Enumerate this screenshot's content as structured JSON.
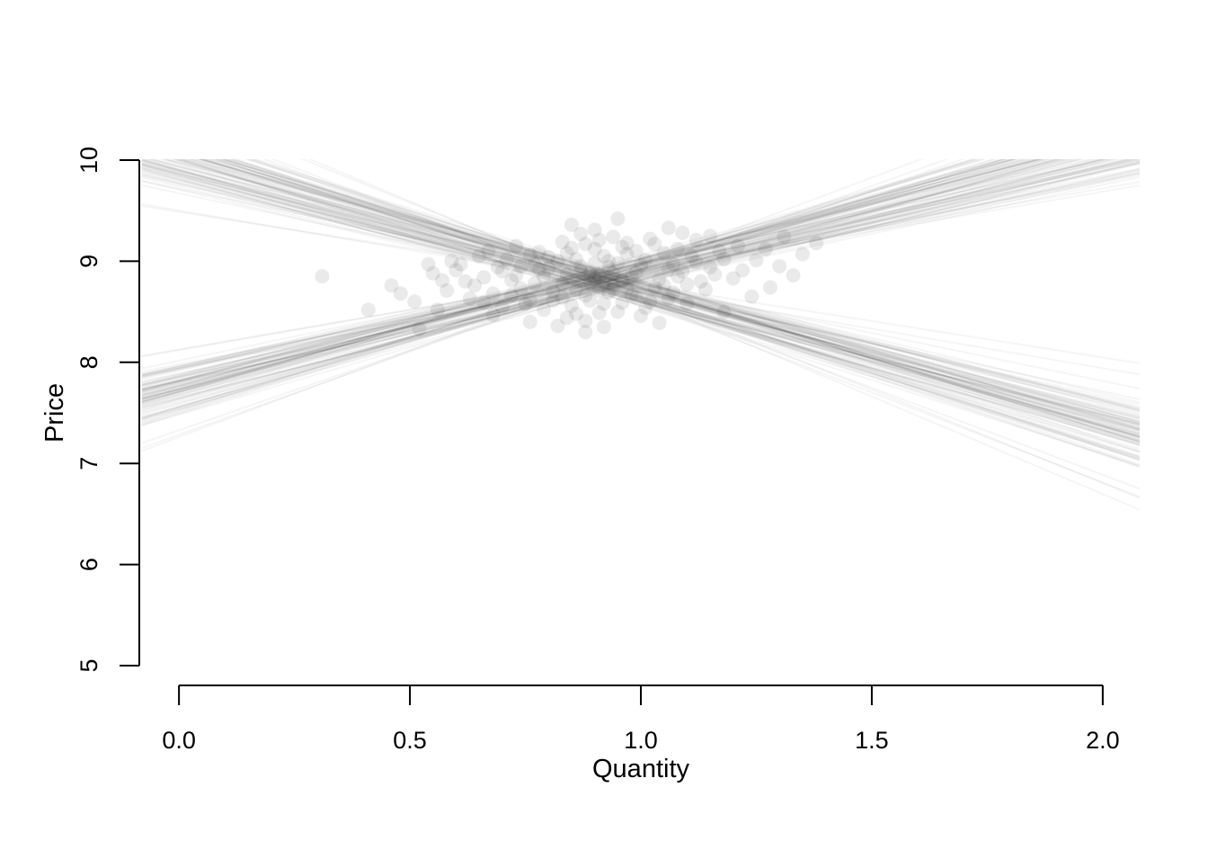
{
  "window": {
    "background": "#ffffff"
  },
  "chart_data": {
    "type": "scatter",
    "title": "",
    "xlabel": "Quantity",
    "ylabel": "Price",
    "xlim": [
      -0.08,
      2.08
    ],
    "ylim": [
      5,
      10
    ],
    "grid": false,
    "legend": "none",
    "x_ticks": [
      {
        "value": 0,
        "label": "0.0"
      },
      {
        "value": 0.5,
        "label": "0.5"
      },
      {
        "value": 1,
        "label": "1.0"
      },
      {
        "value": 1.5,
        "label": "1.5"
      },
      {
        "value": 2,
        "label": "2.0"
      }
    ],
    "y_ticks": [
      {
        "value": 5,
        "label": "5"
      },
      {
        "value": 6,
        "label": "6"
      },
      {
        "value": 7,
        "label": "7"
      },
      {
        "value": 8,
        "label": "8"
      },
      {
        "value": 9,
        "label": "9"
      },
      {
        "value": 10,
        "label": "10"
      }
    ],
    "pivot_x": 0.9,
    "supply_lines": [
      [
        8.8,
        1.12
      ],
      [
        8.76,
        1.28
      ],
      [
        8.84,
        0.98
      ],
      [
        8.71,
        1.19
      ],
      [
        8.88,
        1.05
      ],
      [
        8.79,
        1.37
      ],
      [
        8.83,
        0.78
      ],
      [
        8.74,
        1.15
      ],
      [
        8.9,
        1.22
      ],
      [
        8.77,
        1.02
      ],
      [
        8.85,
        1.31
      ],
      [
        8.69,
        1.09
      ],
      [
        8.81,
        0.94
      ],
      [
        8.87,
        1.18
      ],
      [
        8.73,
        1.26
      ],
      [
        8.92,
        1.07
      ],
      [
        8.78,
        1.42
      ],
      [
        8.84,
        1.13
      ],
      [
        8.7,
        0.99
      ],
      [
        8.86,
        1.24
      ],
      [
        8.75,
        1.35
      ],
      [
        8.82,
        1.04
      ],
      [
        8.89,
        1.16
      ],
      [
        8.72,
        1.29
      ],
      [
        8.8,
        0.91
      ],
      [
        8.77,
        1.21
      ],
      [
        8.91,
        1.1
      ],
      [
        8.68,
        1.33
      ],
      [
        8.83,
        1.17
      ],
      [
        8.79,
        1.0
      ],
      [
        8.86,
        1.27
      ],
      [
        8.74,
        1.08
      ],
      [
        8.81,
        1.39
      ],
      [
        8.88,
        0.96
      ],
      [
        8.76,
        1.14
      ],
      [
        8.84,
        1.23
      ],
      [
        8.71,
        1.06
      ],
      [
        8.9,
        1.32
      ],
      [
        8.78,
        0.93
      ],
      [
        8.85,
        1.2
      ],
      [
        8.73,
        1.11
      ],
      [
        8.82,
        1.45
      ],
      [
        8.87,
        1.03
      ],
      [
        8.75,
        1.25
      ],
      [
        8.8,
        1.17
      ],
      [
        8.93,
        1.3
      ],
      [
        8.69,
        0.97
      ],
      [
        8.86,
        1.09
      ],
      [
        8.77,
        1.36
      ],
      [
        8.83,
        1.22
      ],
      [
        8.72,
        1.01
      ],
      [
        8.89,
        1.19
      ],
      [
        8.76,
        1.64
      ],
      [
        8.81,
        1.07
      ],
      [
        8.87,
        1.26
      ],
      [
        8.7,
        1.13
      ],
      [
        8.84,
        0.8
      ],
      [
        8.79,
        1.34
      ],
      [
        8.91,
        1.16
      ],
      [
        8.74,
        1.05
      ],
      [
        8.82,
        1.24
      ],
      [
        8.78,
        0.95
      ],
      [
        8.88,
        1.38
      ],
      [
        8.67,
        1.12
      ],
      [
        8.85,
        1.21
      ],
      [
        8.73,
        1.3
      ],
      [
        8.8,
        1.04
      ],
      [
        8.9,
        1.15
      ],
      [
        8.76,
        1.41
      ],
      [
        8.83,
        0.99
      ],
      [
        8.71,
        1.18
      ],
      [
        8.86,
        1.28
      ],
      [
        8.79,
        1.08
      ],
      [
        8.92,
        1.23
      ],
      [
        8.75,
        1.58
      ],
      [
        8.81,
        1.14
      ],
      [
        8.88,
        1.02
      ],
      [
        8.68,
        1.27
      ],
      [
        8.84,
        1.19
      ],
      [
        8.77,
        0.92
      ],
      [
        8.89,
        1.33
      ],
      [
        8.72,
        1.1
      ],
      [
        8.85,
        1.25
      ],
      [
        8.78,
        1.06
      ],
      [
        8.82,
        1.44
      ],
      [
        8.7,
        1.17
      ],
      [
        8.87,
        1.29
      ],
      [
        8.74,
        0.98
      ],
      [
        8.91,
        1.21
      ],
      [
        8.8,
        1.71
      ]
    ],
    "demand_lines": [
      [
        8.82,
        -1.25
      ],
      [
        8.78,
        -1.41
      ],
      [
        8.86,
        -1.12
      ],
      [
        8.73,
        -1.3
      ],
      [
        8.9,
        -1.19
      ],
      [
        8.8,
        -1.48
      ],
      [
        8.84,
        -0.72
      ],
      [
        8.76,
        -1.27
      ],
      [
        8.92,
        -1.35
      ],
      [
        8.79,
        -1.16
      ],
      [
        8.87,
        -1.44
      ],
      [
        8.71,
        -1.22
      ],
      [
        8.83,
        -1.08
      ],
      [
        8.89,
        -1.31
      ],
      [
        8.75,
        -1.39
      ],
      [
        8.94,
        -1.2
      ],
      [
        8.8,
        -1.55
      ],
      [
        8.86,
        -1.26
      ],
      [
        8.72,
        -1.13
      ],
      [
        8.88,
        -1.37
      ],
      [
        8.77,
        -1.47
      ],
      [
        8.84,
        -1.17
      ],
      [
        8.91,
        -1.29
      ],
      [
        8.74,
        -1.42
      ],
      [
        8.82,
        -1.05
      ],
      [
        8.79,
        -1.34
      ],
      [
        8.93,
        -1.23
      ],
      [
        8.7,
        -1.46
      ],
      [
        8.85,
        -1.3
      ],
      [
        8.81,
        -1.14
      ],
      [
        8.88,
        -1.4
      ],
      [
        8.76,
        -1.21
      ],
      [
        8.83,
        -1.52
      ],
      [
        8.9,
        -1.1
      ],
      [
        8.78,
        -1.28
      ],
      [
        8.86,
        -1.36
      ],
      [
        8.73,
        -1.19
      ],
      [
        8.92,
        -1.45
      ],
      [
        8.8,
        -0.78
      ],
      [
        8.87,
        -1.33
      ],
      [
        8.75,
        -1.24
      ],
      [
        8.84,
        -1.85
      ],
      [
        8.89,
        -1.16
      ],
      [
        8.77,
        -1.38
      ],
      [
        8.82,
        -1.31
      ],
      [
        8.95,
        -1.43
      ],
      [
        8.71,
        -1.11
      ],
      [
        8.88,
        -1.22
      ],
      [
        8.79,
        -1.49
      ],
      [
        8.85,
        -1.35
      ],
      [
        8.74,
        -1.15
      ],
      [
        8.91,
        -1.32
      ],
      [
        8.78,
        -1.72
      ],
      [
        8.83,
        -1.2
      ],
      [
        8.89,
        -1.39
      ],
      [
        8.72,
        -1.26
      ],
      [
        8.86,
        -0.95
      ],
      [
        8.81,
        -1.47
      ],
      [
        8.93,
        -1.29
      ],
      [
        8.76,
        -1.18
      ],
      [
        8.84,
        -1.37
      ],
      [
        8.8,
        -1.09
      ],
      [
        8.9,
        -1.51
      ],
      [
        8.69,
        -1.25
      ],
      [
        8.87,
        -1.34
      ],
      [
        8.75,
        -1.43
      ],
      [
        8.82,
        -1.17
      ],
      [
        8.92,
        -1.28
      ],
      [
        8.78,
        -1.54
      ],
      [
        8.85,
        -1.12
      ],
      [
        8.73,
        -1.31
      ],
      [
        8.88,
        -1.41
      ],
      [
        8.81,
        -1.21
      ],
      [
        8.94,
        -1.36
      ],
      [
        8.77,
        -1.78
      ],
      [
        8.83,
        -1.27
      ],
      [
        8.9,
        -1.15
      ],
      [
        8.7,
        -1.4
      ],
      [
        8.86,
        -1.32
      ],
      [
        8.79,
        -0.98
      ],
      [
        8.91,
        -1.46
      ],
      [
        8.74,
        -1.23
      ],
      [
        8.87,
        -1.38
      ],
      [
        8.8,
        -1.19
      ],
      [
        8.84,
        -1.57
      ],
      [
        8.72,
        -1.3
      ],
      [
        8.89,
        -1.42
      ],
      [
        8.76,
        -1.11
      ],
      [
        8.93,
        -1.34
      ],
      [
        8.82,
        -1.93
      ]
    ],
    "points": [
      [
        0.78,
        8.92
      ],
      [
        0.83,
        8.77
      ],
      [
        0.91,
        8.85
      ],
      [
        0.95,
        8.98
      ],
      [
        0.88,
        8.66
      ],
      [
        0.72,
        8.81
      ],
      [
        0.99,
        8.89
      ],
      [
        1.03,
        8.74
      ],
      [
        0.86,
        9.02
      ],
      [
        0.92,
        8.58
      ],
      [
        0.81,
        8.7
      ],
      [
        0.97,
        9.07
      ],
      [
        1.06,
        8.92
      ],
      [
        0.89,
        8.79
      ],
      [
        0.76,
        8.62
      ],
      [
        0.93,
        8.94
      ],
      [
        1.01,
        9.01
      ],
      [
        0.84,
        8.87
      ],
      [
        0.9,
        9.12
      ],
      [
        0.98,
        8.67
      ],
      [
        0.74,
        8.73
      ],
      [
        1.08,
        8.85
      ],
      [
        0.87,
        8.95
      ],
      [
        0.96,
        8.81
      ],
      [
        0.8,
        9.04
      ],
      [
        1.02,
        8.6
      ],
      [
        0.91,
        8.71
      ],
      [
        0.85,
        8.56
      ],
      [
        1.05,
        9.08
      ],
      [
        0.94,
        8.88
      ],
      [
        0.7,
        8.9
      ],
      [
        1.1,
        8.77
      ],
      [
        0.88,
        9.17
      ],
      [
        0.79,
        8.52
      ],
      [
        1.0,
        8.96
      ],
      [
        0.92,
        9.05
      ],
      [
        0.83,
        8.64
      ],
      [
        1.07,
        8.69
      ],
      [
        0.9,
        8.83
      ],
      [
        0.96,
        9.14
      ],
      [
        0.68,
        8.68
      ],
      [
        1.12,
        8.99
      ],
      [
        0.86,
        8.48
      ],
      [
        0.94,
        8.76
      ],
      [
        0.77,
        8.97
      ],
      [
        1.04,
        8.82
      ],
      [
        0.89,
        8.61
      ],
      [
        0.99,
        9.1
      ],
      [
        0.82,
        9.0
      ],
      [
        1.09,
        8.9
      ],
      [
        0.66,
        8.84
      ],
      [
        1.14,
        8.72
      ],
      [
        0.91,
        9.21
      ],
      [
        0.75,
        8.58
      ],
      [
        1.01,
        8.54
      ],
      [
        0.87,
        8.9
      ],
      [
        0.97,
        8.73
      ],
      [
        0.71,
        9.02
      ],
      [
        1.11,
        9.05
      ],
      [
        0.84,
        8.44
      ],
      [
        0.93,
        8.69
      ],
      [
        0.78,
        9.09
      ],
      [
        1.06,
        8.63
      ],
      [
        0.9,
        8.98
      ],
      [
        0.64,
        8.76
      ],
      [
        1.16,
        8.87
      ],
      [
        0.85,
        9.13
      ],
      [
        0.95,
        8.5
      ],
      [
        0.73,
        8.86
      ],
      [
        1.03,
        9.17
      ],
      [
        0.88,
        8.41
      ],
      [
        0.98,
        8.85
      ],
      [
        0.69,
        8.94
      ],
      [
        1.13,
        8.8
      ],
      [
        0.81,
        8.61
      ],
      [
        0.92,
        8.79
      ],
      [
        0.76,
        9.06
      ],
      [
        1.08,
        9.12
      ],
      [
        0.86,
        8.72
      ],
      [
        1.0,
        8.46
      ],
      [
        0.62,
        8.8
      ],
      [
        1.18,
        9.02
      ],
      [
        0.89,
        8.88
      ],
      [
        0.94,
        9.24
      ],
      [
        0.72,
        8.66
      ],
      [
        1.05,
        8.76
      ],
      [
        0.8,
        8.93
      ],
      [
        0.96,
        8.59
      ],
      [
        0.67,
        9.1
      ],
      [
        1.15,
        8.94
      ],
      [
        0.83,
        9.19
      ],
      [
        0.91,
        8.49
      ],
      [
        0.77,
        8.78
      ],
      [
        1.07,
        8.97
      ],
      [
        0.87,
        9.27
      ],
      [
        0.99,
        8.64
      ],
      [
        0.6,
        8.91
      ],
      [
        1.2,
        8.83
      ],
      [
        0.93,
        9.0
      ],
      [
        0.74,
        8.95
      ],
      [
        0.58,
        8.71
      ],
      [
        1.22,
        8.91
      ],
      [
        0.9,
        9.31
      ],
      [
        0.82,
        8.36
      ],
      [
        1.02,
        9.22
      ],
      [
        0.7,
        8.55
      ],
      [
        1.1,
        8.58
      ],
      [
        0.85,
        9.36
      ],
      [
        0.97,
        9.18
      ],
      [
        0.63,
        8.63
      ],
      [
        1.17,
        9.1
      ],
      [
        0.79,
        8.85
      ],
      [
        0.95,
        9.42
      ],
      [
        0.56,
        8.52
      ],
      [
        1.25,
        9.01
      ],
      [
        0.88,
        8.3
      ],
      [
        1.04,
        8.39
      ],
      [
        0.73,
        9.15
      ],
      [
        1.12,
        9.21
      ],
      [
        0.61,
        8.97
      ],
      [
        1.28,
        8.74
      ],
      [
        0.84,
        9.08
      ],
      [
        0.92,
        8.35
      ],
      [
        0.55,
        8.88
      ],
      [
        1.21,
        9.15
      ],
      [
        0.68,
        8.47
      ],
      [
        1.31,
        9.24
      ],
      [
        0.76,
        8.4
      ],
      [
        1.09,
        9.28
      ],
      [
        0.52,
        8.33
      ],
      [
        1.35,
        9.07
      ],
      [
        0.65,
        9.05
      ],
      [
        1.24,
        8.65
      ],
      [
        0.46,
        8.76
      ],
      [
        1.3,
        8.95
      ],
      [
        0.59,
        9.0
      ],
      [
        1.38,
        9.18
      ],
      [
        0.51,
        8.6
      ],
      [
        1.18,
        8.5
      ],
      [
        0.41,
        8.52
      ],
      [
        0.31,
        8.85
      ],
      [
        1.27,
        9.12
      ],
      [
        0.57,
        8.81
      ],
      [
        1.33,
        8.86
      ],
      [
        0.48,
        8.68
      ],
      [
        1.15,
        9.25
      ],
      [
        0.54,
        8.97
      ],
      [
        1.06,
        9.33
      ],
      [
        0.66,
        8.59
      ],
      [
        0.94,
        8.72
      ]
    ],
    "styles": {
      "point_color": "#1a1a1a",
      "point_alpha": 0.09,
      "point_radius": 8,
      "line_color": "#000000",
      "line_alpha": 0.04,
      "line_width": 2,
      "axis_color": "#000000",
      "tick_font_size": 27,
      "label_font_size": 29
    }
  }
}
